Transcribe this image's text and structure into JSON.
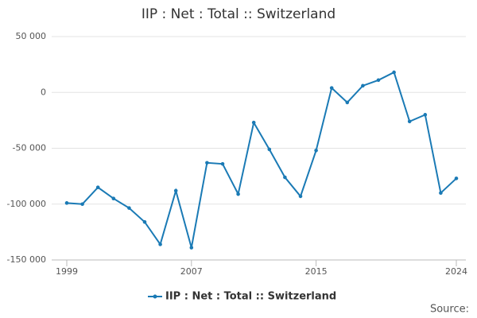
{
  "chart_data": {
    "type": "line",
    "title": "IIP : Net : Total :: Switzerland",
    "x": [
      1999,
      2000,
      2001,
      2002,
      2003,
      2004,
      2005,
      2006,
      2007,
      2008,
      2009,
      2010,
      2011,
      2012,
      2013,
      2014,
      2015,
      2016,
      2017,
      2018,
      2019,
      2020,
      2021,
      2022,
      2023,
      2024
    ],
    "series": [
      {
        "name": "IIP : Net : Total :: Switzerland",
        "color": "#1a7ab5",
        "values": [
          -99000,
          -100000,
          -85000,
          -95000,
          -103500,
          -116000,
          -136000,
          -88000,
          -139000,
          -63000,
          -64000,
          -91000,
          -27000,
          -51000,
          -76000,
          -93000,
          -52000,
          4000,
          -9000,
          6000,
          11000,
          18000,
          -26000,
          -20000,
          -90000,
          -77000
        ]
      }
    ],
    "xlim": [
      1999,
      2024
    ],
    "xticks": [
      1999,
      2007,
      2015,
      2024
    ],
    "ylim": [
      -150000,
      50000
    ],
    "yticks": [
      {
        "value": -150000,
        "label": "-150 000"
      },
      {
        "value": -100000,
        "label": "-100 000"
      },
      {
        "value": -50000,
        "label": "-50 000"
      },
      {
        "value": 0,
        "label": "0"
      },
      {
        "value": 50000,
        "label": "50 000"
      }
    ],
    "grid": true,
    "legend": "bottom",
    "source": "Source:"
  }
}
